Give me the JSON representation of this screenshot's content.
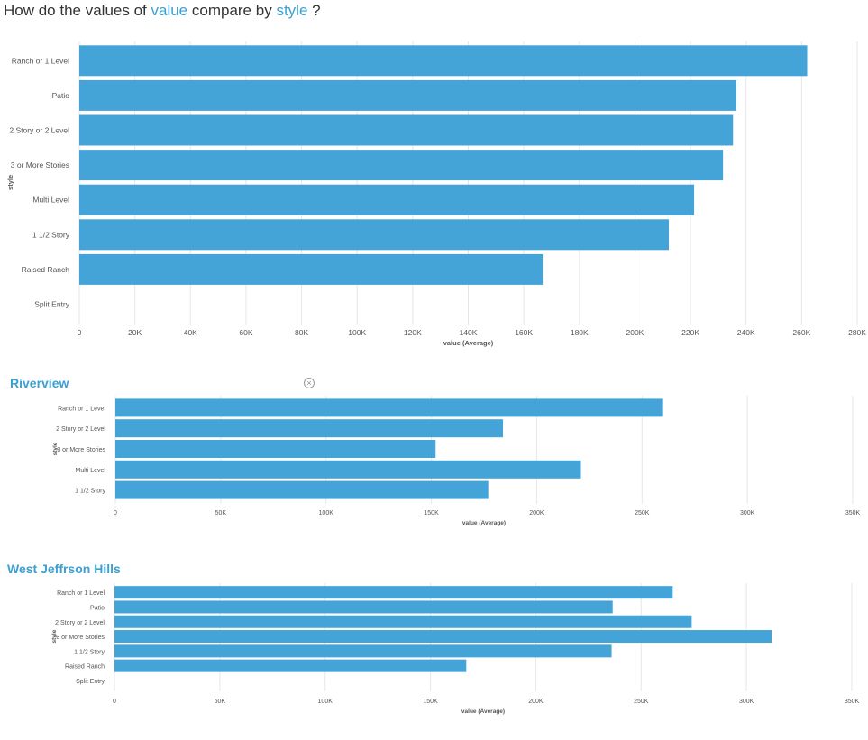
{
  "question": {
    "prefix": "How do the values of",
    "measure": "value",
    "middle": "compare by",
    "dimension": "style",
    "suffix": "?"
  },
  "colors": {
    "bar": "#44a4d8",
    "accent": "#3b9fd1",
    "grid": "#e6e6e6",
    "text": "#555555"
  },
  "icons": {
    "close": "circle-x-icon"
  },
  "chart_data": [
    {
      "type": "bar",
      "orientation": "horizontal",
      "title": "",
      "xlabel": "value (Average)",
      "ylabel": "style",
      "xlim": [
        0,
        280000
      ],
      "xticks": [
        0,
        20000,
        40000,
        60000,
        80000,
        100000,
        120000,
        140000,
        160000,
        180000,
        200000,
        220000,
        240000,
        260000,
        280000
      ],
      "xtick_labels": [
        "0",
        "20K",
        "40K",
        "60K",
        "80K",
        "100K",
        "120K",
        "140K",
        "160K",
        "180K",
        "200K",
        "220K",
        "240K",
        "260K",
        "280K"
      ],
      "grid": true,
      "categories": [
        "Ranch or 1 Level",
        "Patio",
        "2 Story or 2 Level",
        "3 or More Stories",
        "Multi Level",
        "1 1/2 Story",
        "Raised Ranch",
        "Split Entry"
      ],
      "values": [
        262000,
        236500,
        235300,
        231700,
        221300,
        212200,
        166800,
        0
      ]
    },
    {
      "type": "bar",
      "orientation": "horizontal",
      "title": "Riverview",
      "xlabel": "value (Average)",
      "ylabel": "style",
      "xlim": [
        0,
        350000
      ],
      "xticks": [
        0,
        50000,
        100000,
        150000,
        200000,
        250000,
        300000,
        350000
      ],
      "xtick_labels": [
        "0",
        "50K",
        "100K",
        "150K",
        "200K",
        "250K",
        "300K",
        "350K"
      ],
      "grid": true,
      "categories": [
        "Ranch or 1 Level",
        "2 Story or 2 Level",
        "3 or More Stories",
        "Multi Level",
        "1 1/2 Story"
      ],
      "values": [
        260000,
        184000,
        152000,
        221000,
        177000
      ]
    },
    {
      "type": "bar",
      "orientation": "horizontal",
      "title": "West Jeffrson Hills",
      "xlabel": "value (Average)",
      "ylabel": "style",
      "xlim": [
        0,
        350000
      ],
      "xticks": [
        0,
        50000,
        100000,
        150000,
        200000,
        250000,
        300000,
        350000
      ],
      "xtick_labels": [
        "0",
        "50K",
        "100K",
        "150K",
        "200K",
        "250K",
        "300K",
        "350K"
      ],
      "grid": true,
      "categories": [
        "Ranch or 1 Level",
        "Patio",
        "2 Story or 2 Level",
        "3 or More Stories",
        "1 1/2 Story",
        "Raised Ranch",
        "Split Entry"
      ],
      "values": [
        265000,
        236500,
        274000,
        312000,
        236000,
        167000,
        0
      ]
    }
  ]
}
